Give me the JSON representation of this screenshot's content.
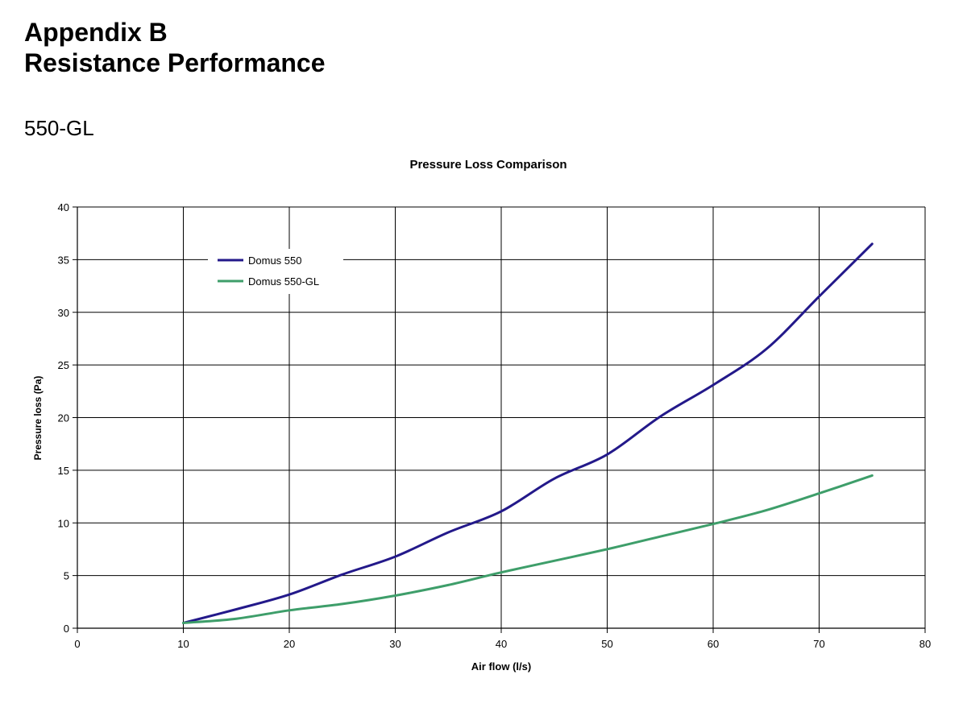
{
  "document": {
    "heading_line1": "Appendix B",
    "heading_line2": "Resistance Performance",
    "model": "550-GL"
  },
  "chart_data": {
    "type": "line",
    "title": "Pressure Loss Comparison",
    "xlabel": "Air flow (l/s)",
    "ylabel": "Pressure loss (Pa)",
    "xlim": [
      0,
      80
    ],
    "ylim": [
      0,
      40
    ],
    "xticks": [
      0,
      10,
      20,
      30,
      40,
      50,
      60,
      70,
      80
    ],
    "yticks": [
      0,
      5,
      10,
      15,
      20,
      25,
      30,
      35,
      40
    ],
    "grid": true,
    "legend_position": "top-left",
    "series": [
      {
        "name": "Domus 550",
        "color": "#23198a",
        "x": [
          10,
          15,
          20,
          25,
          30,
          35,
          40,
          45,
          50,
          55,
          60,
          65,
          70,
          75
        ],
        "y": [
          0.5,
          1.8,
          3.2,
          5.1,
          6.8,
          9.1,
          11.1,
          14.2,
          16.5,
          20.1,
          23.1,
          26.5,
          31.5,
          36.5
        ]
      },
      {
        "name": "Domus 550-GL",
        "color": "#3e9e6a",
        "x": [
          10,
          15,
          20,
          25,
          30,
          35,
          40,
          45,
          50,
          55,
          60,
          65,
          70,
          75
        ],
        "y": [
          0.5,
          0.9,
          1.7,
          2.3,
          3.1,
          4.1,
          5.3,
          6.4,
          7.5,
          8.7,
          9.9,
          11.2,
          12.8,
          14.5
        ]
      }
    ]
  }
}
